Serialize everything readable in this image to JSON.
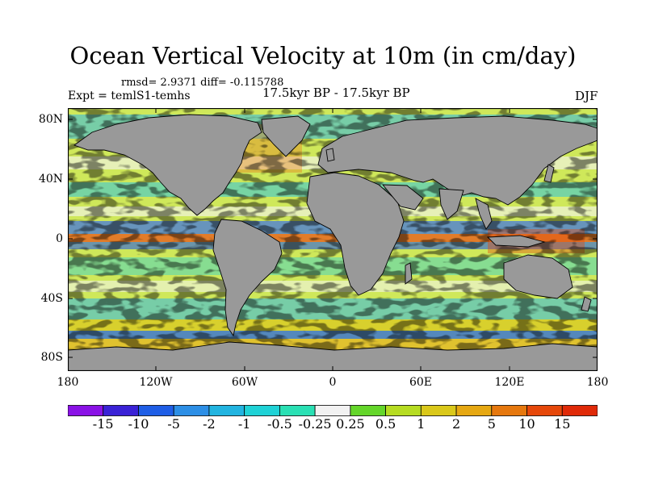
{
  "title": "Ocean Vertical Velocity at 10m (in cm/day)",
  "stats": "rmsd= 2.9371 diff= -0.115788",
  "expt": "Expt = temlS1-temhs",
  "period": "17.5kyr BP - 17.5kyr BP",
  "season": "DJF",
  "lat_labels": [
    "80N",
    "40N",
    "0",
    "40S",
    "80S"
  ],
  "lon_labels": [
    "180",
    "120W",
    "60W",
    "0",
    "60E",
    "120E",
    "180"
  ],
  "colorbar": {
    "labels": [
      "-15",
      "-10",
      "-5",
      "-2",
      "-1",
      "-0.5",
      "-0.25",
      "0.25",
      "0.5",
      "1",
      "2",
      "5",
      "10",
      "15"
    ],
    "colors": [
      "#8a12e6",
      "#3a22d6",
      "#1f5ee6",
      "#2d8fe6",
      "#22b4e0",
      "#1fd2d6",
      "#2ae0b4",
      "#f2f2f2",
      "#64d62a",
      "#b6dc22",
      "#dac81a",
      "#e6a812",
      "#e6780e",
      "#e6480a",
      "#e02a08"
    ]
  },
  "land_color": "#999999"
}
